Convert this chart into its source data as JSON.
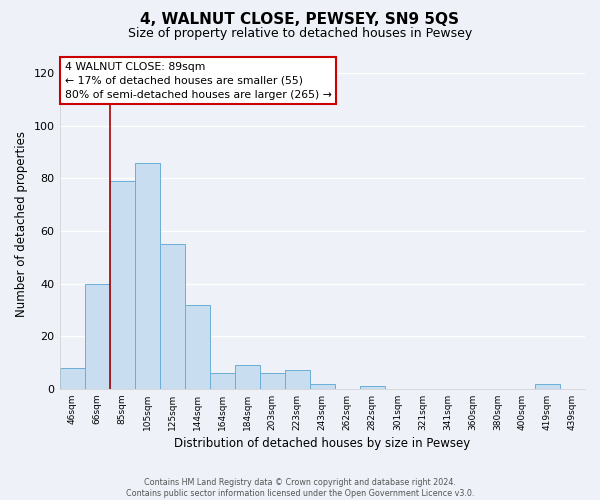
{
  "title": "4, WALNUT CLOSE, PEWSEY, SN9 5QS",
  "subtitle": "Size of property relative to detached houses in Pewsey",
  "xlabel": "Distribution of detached houses by size in Pewsey",
  "ylabel": "Number of detached properties",
  "bin_labels": [
    "46sqm",
    "66sqm",
    "85sqm",
    "105sqm",
    "125sqm",
    "144sqm",
    "164sqm",
    "184sqm",
    "203sqm",
    "223sqm",
    "243sqm",
    "262sqm",
    "282sqm",
    "301sqm",
    "321sqm",
    "341sqm",
    "360sqm",
    "380sqm",
    "400sqm",
    "419sqm",
    "439sqm"
  ],
  "bar_heights": [
    8,
    40,
    79,
    86,
    55,
    32,
    6,
    9,
    6,
    7,
    2,
    0,
    1,
    0,
    0,
    0,
    0,
    0,
    0,
    2,
    0
  ],
  "bar_color": "#c8ddf0",
  "bar_edge_color": "#6aaed6",
  "ylim": [
    0,
    125
  ],
  "yticks": [
    0,
    20,
    40,
    60,
    80,
    100,
    120
  ],
  "property_line_bin_index": 2,
  "property_line_color": "#aa0000",
  "annotation_title": "4 WALNUT CLOSE: 89sqm",
  "annotation_line1": "← 17% of detached houses are smaller (55)",
  "annotation_line2": "80% of semi-detached houses are larger (265) →",
  "annotation_box_color": "#ffffff",
  "annotation_box_edge": "#cc0000",
  "footer_line1": "Contains HM Land Registry data © Crown copyright and database right 2024.",
  "footer_line2": "Contains public sector information licensed under the Open Government Licence v3.0.",
  "background_color": "#eef2f8",
  "plot_bg_color": "#eef2f8",
  "grid_color": "#ffffff"
}
